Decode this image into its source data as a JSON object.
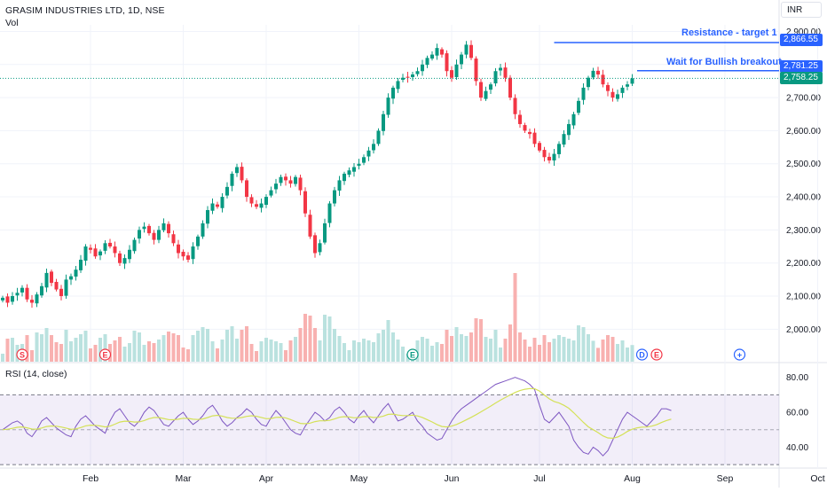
{
  "header": {
    "title": "GRASIM INDUSTRIES LTD, 1D, NSE",
    "volume_label": "Vol",
    "currency": "INR"
  },
  "rsi": {
    "label": "RSI (14, close)",
    "ticks": [
      "80.00",
      "60.00",
      "40.00"
    ],
    "overbought": 70,
    "oversold": 30,
    "series": [
      50,
      52,
      54,
      55,
      53,
      48,
      46,
      50,
      55,
      57,
      54,
      51,
      49,
      47,
      46,
      52,
      56,
      58,
      55,
      52,
      50,
      48,
      55,
      60,
      62,
      58,
      54,
      52,
      55,
      60,
      63,
      61,
      57,
      53,
      52,
      55,
      58,
      60,
      56,
      53,
      55,
      58,
      62,
      64,
      60,
      55,
      52,
      54,
      57,
      59,
      62,
      60,
      56,
      53,
      52,
      57,
      61,
      58,
      54,
      50,
      48,
      47,
      52,
      56,
      60,
      58,
      55,
      57,
      61,
      63,
      60,
      56,
      54,
      58,
      61,
      57,
      54,
      58,
      62,
      65,
      60,
      55,
      56,
      58,
      60,
      55,
      52,
      48,
      46,
      44,
      45,
      50,
      55,
      59,
      62,
      64,
      66,
      68,
      70,
      72,
      74,
      76,
      77,
      78,
      79,
      80,
      79,
      78,
      76,
      73,
      64,
      56,
      54,
      57,
      60,
      56,
      52,
      44,
      40,
      37,
      36,
      40,
      38,
      35,
      38,
      44,
      50,
      56,
      60,
      58,
      56,
      54,
      52,
      55,
      58,
      62,
      62,
      61
    ],
    "signal_color": "#d4e157",
    "line_color": "#7e57c2"
  },
  "price_axis": {
    "ticks": [
      "2,900.00",
      "2,800.00",
      "2,700.00",
      "2,600.00",
      "2,500.00",
      "2,400.00",
      "2,300.00",
      "2,200.00",
      "2,100.00",
      "2,000.00"
    ],
    "tags": [
      {
        "value": "2,866.55",
        "color": "#2962ff"
      },
      {
        "value": "2,781.25",
        "color": "#2962ff"
      },
      {
        "value": "2,758.25",
        "color": "#089981"
      }
    ]
  },
  "annotations": {
    "resistance": "Resistance - target 1",
    "breakout": "Wait for Bullish breakout",
    "resistance_level": 2866.55,
    "breakout_level": 2781.25
  },
  "event_markers": [
    {
      "letter": "S",
      "color": "#f23645",
      "index": 4
    },
    {
      "letter": "E",
      "color": "#f23645",
      "index": 21
    },
    {
      "letter": "E",
      "color": "#089981",
      "index": 84
    },
    {
      "letter": "D",
      "color": "#2962ff",
      "index": 131
    },
    {
      "letter": "E",
      "color": "#f23645",
      "index": 134
    },
    {
      "letter": "+",
      "color": "#2962ff",
      "index": 151
    }
  ],
  "chart_data": {
    "type": "candlestick",
    "title": "GRASIM INDUSTRIES LTD, 1D, NSE",
    "y_range": [
      1950,
      2920
    ],
    "last_price": 2758.25,
    "months": [
      "Feb",
      "Mar",
      "Apr",
      "May",
      "Jun",
      "Jul",
      "Aug",
      "Sep",
      "Oct"
    ],
    "month_indices": [
      18,
      37,
      54,
      73,
      92,
      110,
      129,
      148,
      167
    ],
    "up_color": "#089981",
    "down_color": "#f23645",
    "close_path": [
      2095,
      2080,
      2100,
      2110,
      2125,
      2090,
      2080,
      2105,
      2130,
      2170,
      2140,
      2120,
      2100,
      2150,
      2160,
      2180,
      2210,
      2250,
      2240,
      2220,
      2235,
      2260,
      2250,
      2230,
      2200,
      2215,
      2240,
      2270,
      2300,
      2310,
      2290,
      2270,
      2300,
      2320,
      2290,
      2260,
      2230,
      2220,
      2210,
      2250,
      2280,
      2320,
      2360,
      2380,
      2370,
      2400,
      2430,
      2470,
      2490,
      2450,
      2400,
      2380,
      2370,
      2380,
      2400,
      2420,
      2440,
      2460,
      2450,
      2440,
      2460,
      2420,
      2350,
      2280,
      2230,
      2260,
      2320,
      2380,
      2420,
      2450,
      2470,
      2480,
      2490,
      2500,
      2520,
      2540,
      2560,
      2600,
      2650,
      2700,
      2730,
      2750,
      2760,
      2760,
      2770,
      2780,
      2800,
      2820,
      2830,
      2850,
      2830,
      2780,
      2760,
      2800,
      2830,
      2860,
      2820,
      2750,
      2700,
      2720,
      2740,
      2780,
      2790,
      2760,
      2700,
      2650,
      2620,
      2600,
      2590,
      2560,
      2540,
      2520,
      2510,
      2530,
      2560,
      2590,
      2620,
      2650,
      2690,
      2730,
      2760,
      2781,
      2770,
      2740,
      2720,
      2700,
      2710,
      2730,
      2740,
      2758
    ]
  }
}
